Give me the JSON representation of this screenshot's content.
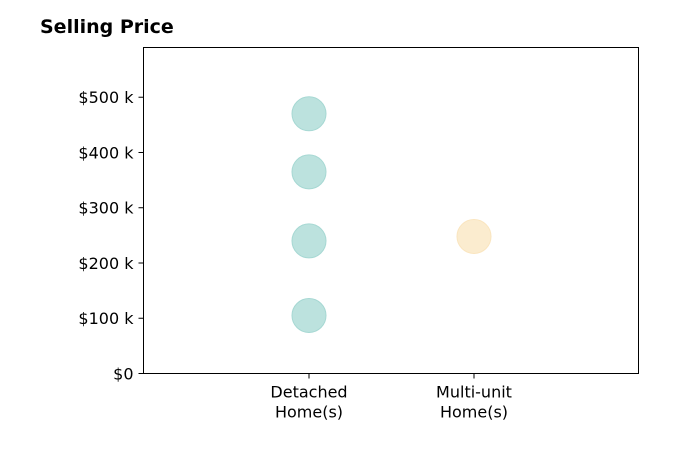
{
  "chart_data": {
    "type": "scatter",
    "title": "Selling Price",
    "xlabel": "",
    "ylabel": "",
    "categories": [
      "Detached\nHome(s)",
      "Multi-unit\nHome(s)"
    ],
    "y_ticks": [
      {
        "value": 0,
        "label": "$0"
      },
      {
        "value": 100000,
        "label": "$100 k"
      },
      {
        "value": 200000,
        "label": "$200 k"
      },
      {
        "value": 300000,
        "label": "$300 k"
      },
      {
        "value": 400000,
        "label": "$400 k"
      },
      {
        "value": 500000,
        "label": "$500 k"
      }
    ],
    "ylim": [
      0,
      590000
    ],
    "grid": false,
    "series": [
      {
        "category_index": 0,
        "values": [
          470000,
          365000,
          240000,
          105000
        ],
        "color": "#a6d8d3"
      },
      {
        "category_index": 1,
        "values": [
          248000
        ],
        "color": "#fae5bf"
      }
    ]
  }
}
